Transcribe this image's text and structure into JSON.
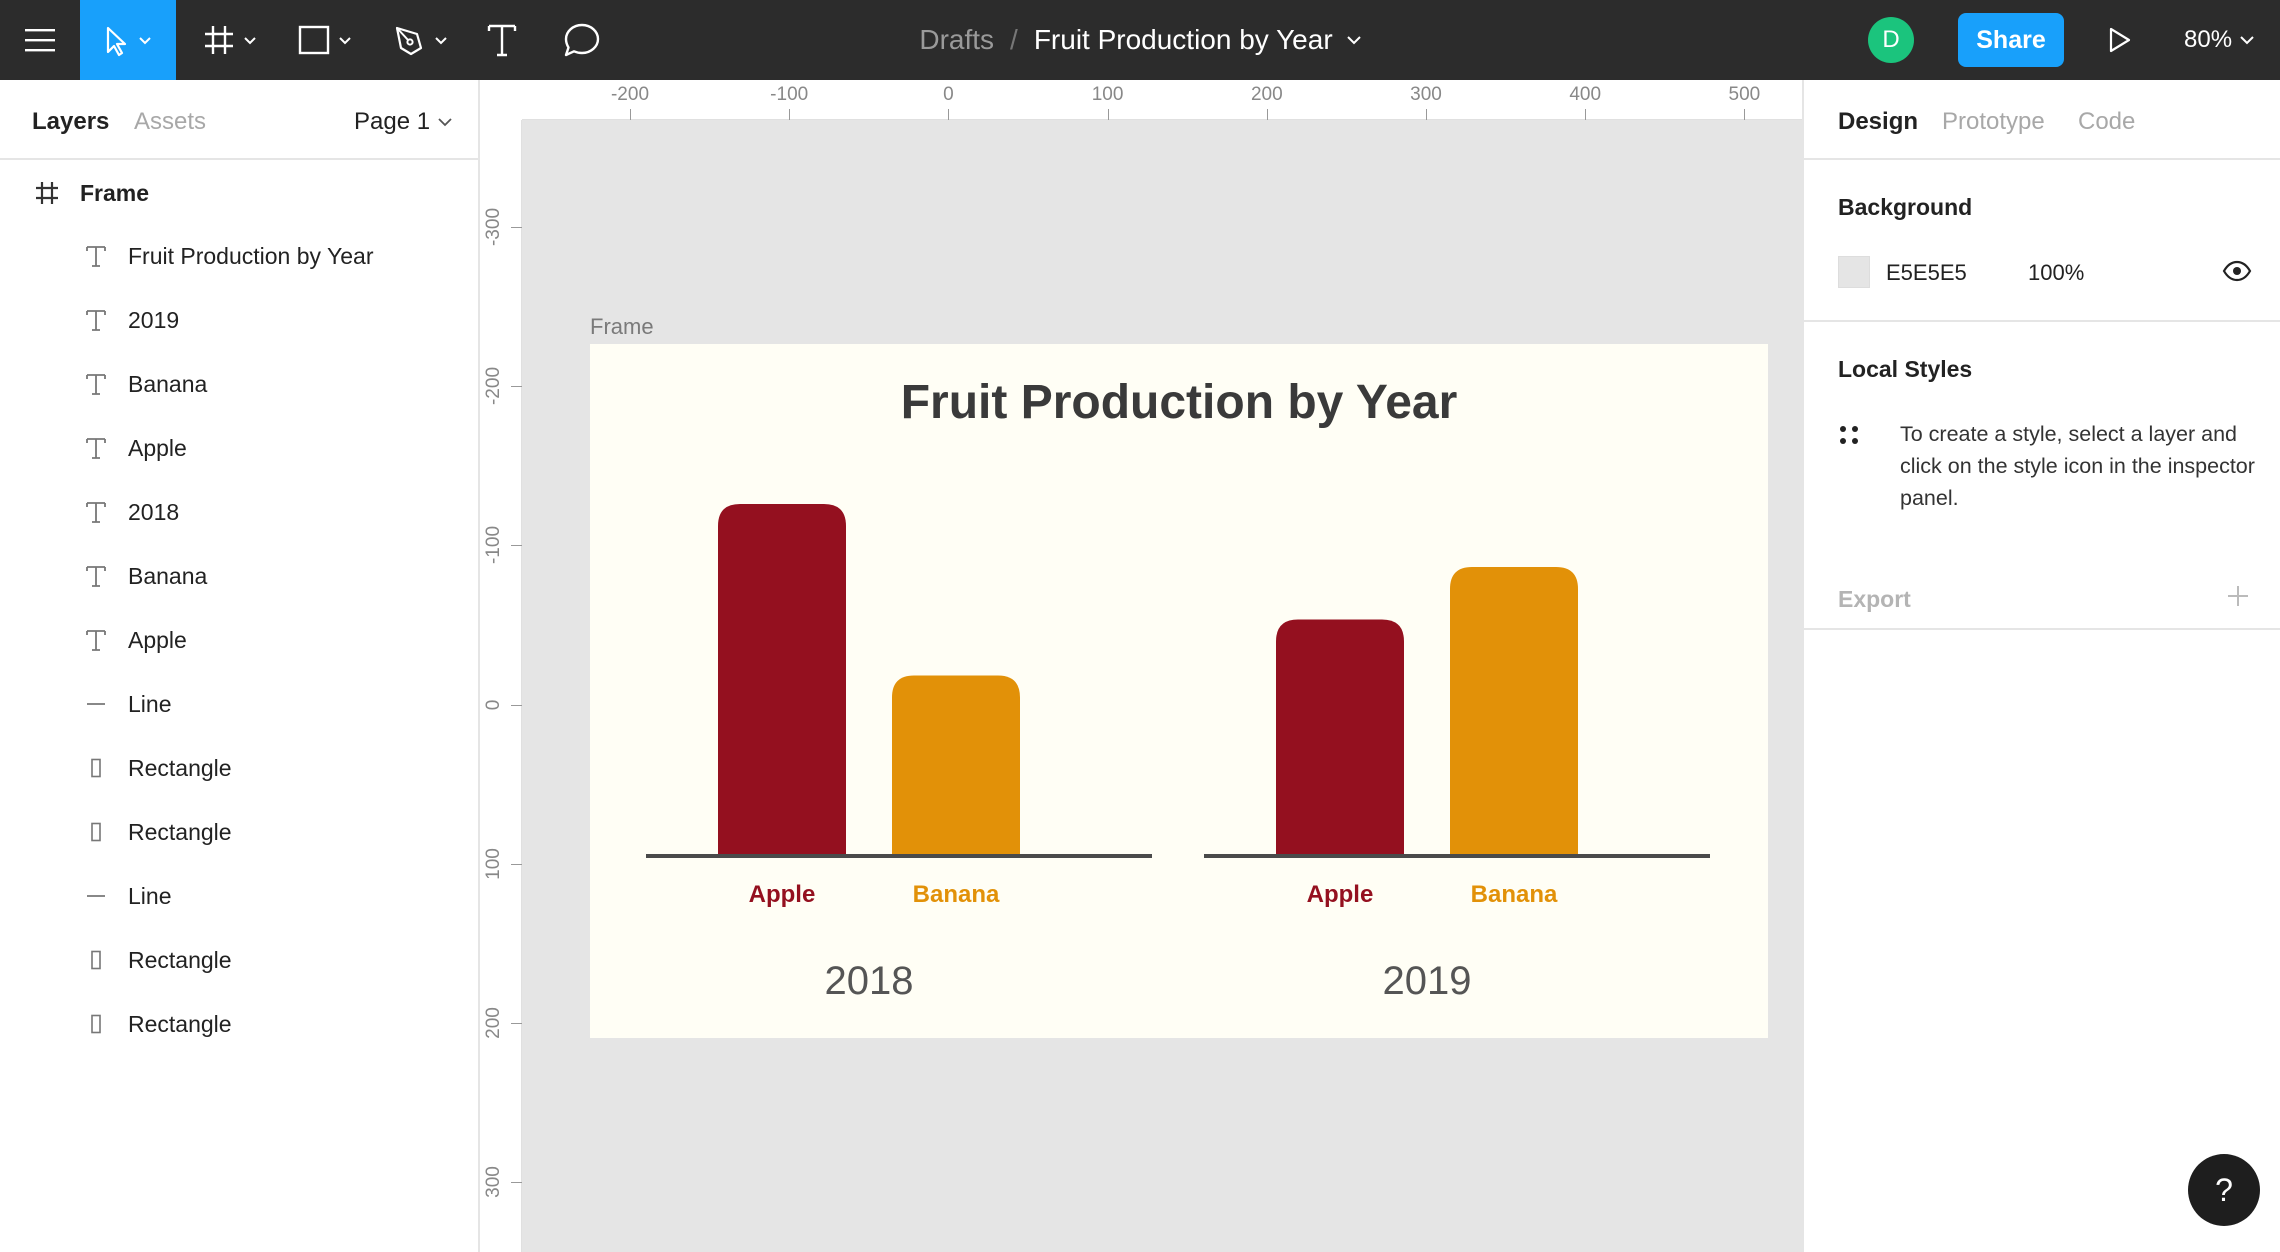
{
  "toolbar": {
    "breadcrumb_parent": "Drafts",
    "breadcrumb_separator": "/",
    "file_name": "Fruit Production by Year",
    "avatar_initial": "D",
    "share_label": "Share",
    "zoom_level": "80%",
    "accent_color": "#18a0fb",
    "tools": [
      "menu-icon",
      "move-tool-icon",
      "frame-tool-icon",
      "rectangle-tool-icon",
      "pen-tool-icon",
      "text-tool-icon",
      "comment-tool-icon"
    ]
  },
  "left_panel": {
    "tab_layers": "Layers",
    "tab_assets": "Assets",
    "page_label": "Page 1",
    "frame_layer": "Frame",
    "layers": [
      {
        "type": "text",
        "label": "Fruit Production by Year"
      },
      {
        "type": "text",
        "label": "2019"
      },
      {
        "type": "text",
        "label": "Banana"
      },
      {
        "type": "text",
        "label": "Apple"
      },
      {
        "type": "text",
        "label": "2018"
      },
      {
        "type": "text",
        "label": "Banana"
      },
      {
        "type": "text",
        "label": "Apple"
      },
      {
        "type": "line",
        "label": "Line"
      },
      {
        "type": "rect",
        "label": "Rectangle"
      },
      {
        "type": "rect",
        "label": "Rectangle"
      },
      {
        "type": "line",
        "label": "Line"
      },
      {
        "type": "rect",
        "label": "Rectangle"
      },
      {
        "type": "rect",
        "label": "Rectangle"
      }
    ]
  },
  "canvas": {
    "frame_name": "Frame",
    "background_color": "#e5e5e5",
    "ruler_top": [
      "-200",
      "-100",
      "0",
      "100",
      "200",
      "300",
      "400",
      "500"
    ],
    "ruler_left": [
      "-300",
      "-200",
      "-100",
      "0",
      "100",
      "200",
      "300"
    ]
  },
  "chart_data": {
    "type": "bar",
    "title": "Fruit Production by Year",
    "groups": [
      {
        "label": "2018",
        "bars": [
          {
            "category": "Apple",
            "value": 100
          },
          {
            "category": "Banana",
            "value": 51
          }
        ]
      },
      {
        "label": "2019",
        "bars": [
          {
            "category": "Apple",
            "value": 67
          },
          {
            "category": "Banana",
            "value": 82
          }
        ]
      }
    ],
    "colors": {
      "Apple": "#94101f",
      "Banana": "#e29108"
    },
    "ylim": [
      0,
      100
    ]
  },
  "right_panel": {
    "tab_design": "Design",
    "tab_prototype": "Prototype",
    "tab_code": "Code",
    "background_title": "Background",
    "background_hex": "E5E5E5",
    "background_opacity": "100%",
    "local_styles_title": "Local Styles",
    "local_styles_hint": "To create a style, select a layer and click on the style icon in the inspector panel.",
    "export_title": "Export"
  },
  "help_label": "?"
}
